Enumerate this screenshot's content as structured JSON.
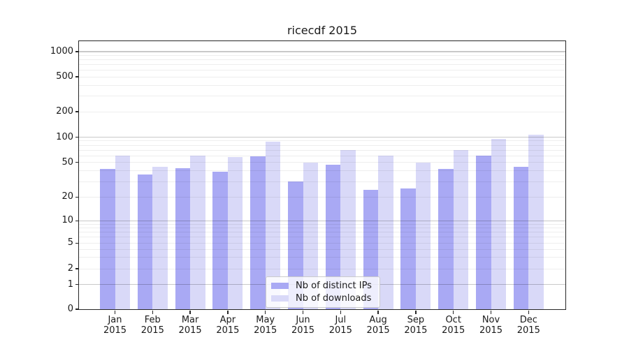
{
  "title": "ricecdf 2015",
  "chart_data": {
    "type": "bar",
    "title": "ricecdf 2015",
    "categories": [
      "Jan 2015",
      "Feb 2015",
      "Mar 2015",
      "Apr 2015",
      "May 2015",
      "Jun 2015",
      "Jul 2015",
      "Aug 2015",
      "Sep 2015",
      "Oct 2015",
      "Nov 2015",
      "Dec 2015"
    ],
    "series": [
      {
        "name": "Nb of distinct IPs",
        "color": "#a9a9f4",
        "values": [
          42,
          36,
          43,
          39,
          59,
          30,
          47,
          24,
          25,
          42,
          60,
          44
        ]
      },
      {
        "name": "Nb of downloads",
        "color": "#d9d9f8",
        "values": [
          60,
          44,
          60,
          58,
          89,
          50,
          70,
          60,
          50,
          70,
          96,
          107
        ]
      }
    ],
    "xlabel": "",
    "ylabel": "",
    "yscale": "symlog",
    "yticks": [
      0,
      1,
      2,
      5,
      10,
      20,
      50,
      100,
      200,
      500,
      1000
    ],
    "ylim": [
      0,
      1340
    ],
    "grid": "both-major-and-minor",
    "legend_position": "lower center"
  },
  "axes": {
    "y_tick_labels": [
      "0",
      "1",
      "2",
      "5",
      "10",
      "20",
      "50",
      "100",
      "200",
      "500",
      "1000"
    ],
    "x_tick_months": [
      "Jan",
      "Feb",
      "Mar",
      "Apr",
      "May",
      "Jun",
      "Jul",
      "Aug",
      "Sep",
      "Oct",
      "Nov",
      "Dec"
    ],
    "x_tick_year": "2015"
  },
  "legend": {
    "items": [
      {
        "label": "Nb of distinct IPs",
        "swatch_color": "#a9a9f4"
      },
      {
        "label": "Nb of downloads",
        "swatch_color": "#d9d9f8"
      }
    ]
  },
  "colors": {
    "background": "#ffffff",
    "series_ips": "#a9a9f4",
    "series_downloads": "#d9d9f8",
    "grid_major": "#c9c9c9",
    "grid_minor": "#ececec",
    "spine": "#262626",
    "text": "#1a1a1a"
  }
}
